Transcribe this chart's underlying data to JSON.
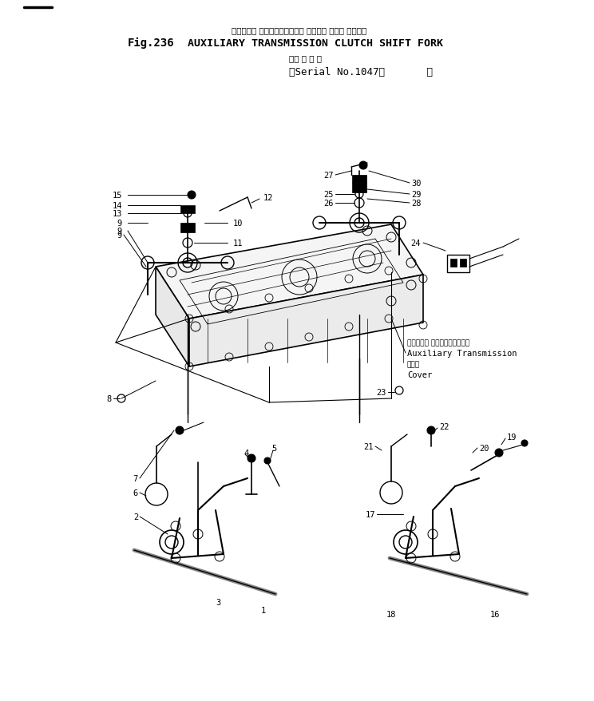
{
  "bg_color": "#ffffff",
  "line_color": "#000000",
  "title_jp": "オギジアリ トランスミッション クラッチ シフト フォーク",
  "title_en": "AUXILIARY TRANSMISSION CLUTCH SHIFT FORK",
  "fig_num": "Fig.236",
  "serial_jp": "（適 用 号 機",
  "serial_en": "（Serial No.1047～       ）",
  "annotation_jp": "オギジアリ トランスミッション",
  "annotation_en1": "Auxiliary Transmission",
  "annotation_jp2": "カバー",
  "annotation_en2": "Cover",
  "fig_width": 7.44,
  "fig_height": 8.79,
  "dpi": 100
}
